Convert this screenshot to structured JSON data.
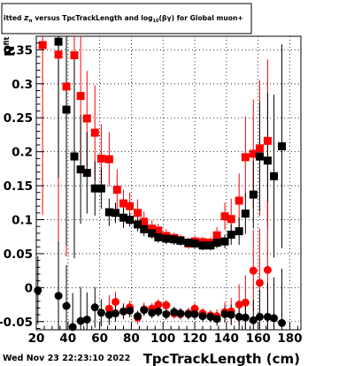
{
  "chart_data": {
    "type": "scatter",
    "title_parts": [
      "itted ",
      "z",
      "π",
      " versus TpcTrackLength and log",
      "10",
      "(βγ) for Global muon+"
    ],
    "xlabel": "TpcTrackLength (cm)",
    "ylabel_parts": [
      "N",
      "fit"
    ],
    "xlim": [
      20,
      187
    ],
    "ylim": [
      -0.062,
      0.37
    ],
    "xticks": [
      20,
      40,
      60,
      80,
      100,
      120,
      140,
      160,
      180
    ],
    "yticks": [
      -0.05,
      0,
      0.05,
      0.1,
      0.15,
      0.2,
      0.25,
      0.3,
      0.35
    ],
    "ytick_labels": [
      "-0.05",
      "0",
      "0.05",
      "0.1",
      "0.15",
      "0.2",
      "0.25",
      "0.3",
      "0.35"
    ],
    "grid": true,
    "footer": "Wed Nov 23 22:23:10 2022",
    "series": [
      {
        "color": "#ff0000",
        "marker": "square",
        "points": [
          [
            24,
            0.357,
            0.25
          ],
          [
            34,
            0.343,
            0.28
          ],
          [
            39,
            0.296,
            0.25
          ],
          [
            44,
            0.342,
            0.25
          ],
          [
            48,
            0.282,
            0.1
          ],
          [
            52,
            0.249,
            0.07
          ],
          [
            57,
            0.228,
            0.07
          ],
          [
            61,
            0.19,
            0.05
          ],
          [
            66,
            0.189,
            0.04
          ],
          [
            71,
            0.144,
            0.03
          ],
          [
            75,
            0.124,
            0.02
          ],
          [
            79,
            0.12,
            0.02
          ],
          [
            84,
            0.11,
            0.02
          ],
          [
            88,
            0.097,
            0.015
          ],
          [
            93,
            0.087,
            0.012
          ],
          [
            97,
            0.084,
            0.01
          ],
          [
            102,
            0.076,
            0.01
          ],
          [
            107,
            0.073,
            0.008
          ],
          [
            111,
            0.07,
            0.008
          ],
          [
            116,
            0.065,
            0.008
          ],
          [
            120,
            0.068,
            0.008
          ],
          [
            125,
            0.067,
            0.008
          ],
          [
            130,
            0.066,
            0.008
          ],
          [
            134,
            0.077,
            0.012
          ],
          [
            139,
            0.105,
            0.02
          ],
          [
            143,
            0.101,
            0.03
          ],
          [
            148,
            0.128,
            0.04
          ],
          [
            152,
            0.192,
            0.06
          ],
          [
            157,
            0.197,
            0.08
          ],
          [
            161,
            0.205,
            0.1
          ],
          [
            166,
            0.216,
            0.12
          ]
        ]
      },
      {
        "color": "#000000",
        "marker": "square",
        "points": [
          [
            34,
            0.362,
            0.2
          ],
          [
            39,
            0.262,
            0.2
          ],
          [
            44,
            0.193,
            0.15
          ],
          [
            48,
            0.174,
            0.08
          ],
          [
            52,
            0.169,
            0.06
          ],
          [
            57,
            0.146,
            0.04
          ],
          [
            61,
            0.146,
            0.03
          ],
          [
            66,
            0.111,
            0.02
          ],
          [
            70,
            0.11,
            0.015
          ],
          [
            75,
            0.103,
            0.015
          ],
          [
            79,
            0.1,
            0.01
          ],
          [
            84,
            0.093,
            0.01
          ],
          [
            88,
            0.086,
            0.01
          ],
          [
            93,
            0.08,
            0.008
          ],
          [
            97,
            0.074,
            0.008
          ],
          [
            102,
            0.072,
            0.008
          ],
          [
            107,
            0.071,
            0.008
          ],
          [
            111,
            0.069,
            0.007
          ],
          [
            116,
            0.066,
            0.007
          ],
          [
            120,
            0.065,
            0.007
          ],
          [
            125,
            0.062,
            0.007
          ],
          [
            130,
            0.062,
            0.007
          ],
          [
            134,
            0.066,
            0.008
          ],
          [
            139,
            0.068,
            0.01
          ],
          [
            143,
            0.078,
            0.015
          ],
          [
            148,
            0.083,
            0.02
          ],
          [
            152,
            0.109,
            0.03
          ],
          [
            157,
            0.137,
            0.05
          ],
          [
            161,
            0.193,
            0.08
          ],
          [
            166,
            0.187,
            0.1
          ],
          [
            170,
            0.164,
            0.12
          ],
          [
            175,
            0.208,
            0.15
          ]
        ]
      },
      {
        "color": "#ff0000",
        "marker": "circle",
        "points": [
          [
            66,
            -0.031,
            0.02
          ],
          [
            70,
            -0.021,
            0.015
          ],
          [
            75,
            -0.035,
            0.012
          ],
          [
            79,
            -0.029,
            0.01
          ],
          [
            84,
            -0.044,
            0.01
          ],
          [
            88,
            -0.032,
            0.01
          ],
          [
            93,
            -0.031,
            0.008
          ],
          [
            97,
            -0.025,
            0.008
          ],
          [
            102,
            -0.026,
            0.008
          ],
          [
            107,
            -0.038,
            0.008
          ],
          [
            111,
            -0.039,
            0.008
          ],
          [
            116,
            -0.038,
            0.008
          ],
          [
            120,
            -0.031,
            0.008
          ],
          [
            125,
            -0.038,
            0.008
          ],
          [
            130,
            -0.041,
            0.008
          ],
          [
            134,
            -0.042,
            0.01
          ],
          [
            139,
            -0.036,
            0.015
          ],
          [
            143,
            -0.035,
            0.02
          ],
          [
            148,
            -0.025,
            0.03
          ],
          [
            152,
            -0.022,
            0.04
          ],
          [
            157,
            0.025,
            0.06
          ],
          [
            161,
            0.007,
            0.08
          ],
          [
            166,
            0.026,
            0.1
          ]
        ]
      },
      {
        "color": "#000000",
        "marker": "circle",
        "points": [
          [
            21,
            -0.004,
            0.05
          ],
          [
            34,
            -0.012,
            0.08
          ],
          [
            39,
            -0.027,
            0.06
          ],
          [
            43,
            -0.058,
            0.05
          ],
          [
            48,
            -0.049,
            0.05
          ],
          [
            52,
            -0.047,
            0.04
          ],
          [
            57,
            -0.029,
            0.03
          ],
          [
            61,
            -0.037,
            0.02
          ],
          [
            66,
            -0.04,
            0.015
          ],
          [
            70,
            -0.038,
            0.012
          ],
          [
            75,
            -0.035,
            0.01
          ],
          [
            79,
            -0.034,
            0.01
          ],
          [
            84,
            -0.042,
            0.008
          ],
          [
            88,
            -0.033,
            0.008
          ],
          [
            93,
            -0.037,
            0.008
          ],
          [
            97,
            -0.035,
            0.008
          ],
          [
            102,
            -0.039,
            0.008
          ],
          [
            107,
            -0.036,
            0.008
          ],
          [
            111,
            -0.038,
            0.008
          ],
          [
            116,
            -0.039,
            0.008
          ],
          [
            120,
            -0.039,
            0.008
          ],
          [
            125,
            -0.042,
            0.008
          ],
          [
            130,
            -0.043,
            0.008
          ],
          [
            134,
            -0.046,
            0.01
          ],
          [
            139,
            -0.039,
            0.012
          ],
          [
            143,
            -0.04,
            0.015
          ],
          [
            148,
            -0.043,
            0.02
          ],
          [
            152,
            -0.044,
            0.025
          ],
          [
            157,
            -0.048,
            0.03
          ],
          [
            161,
            -0.043,
            0.04
          ],
          [
            166,
            -0.043,
            0.05
          ],
          [
            170,
            -0.045,
            0.06
          ],
          [
            175,
            -0.052,
            0.08
          ]
        ]
      }
    ]
  }
}
